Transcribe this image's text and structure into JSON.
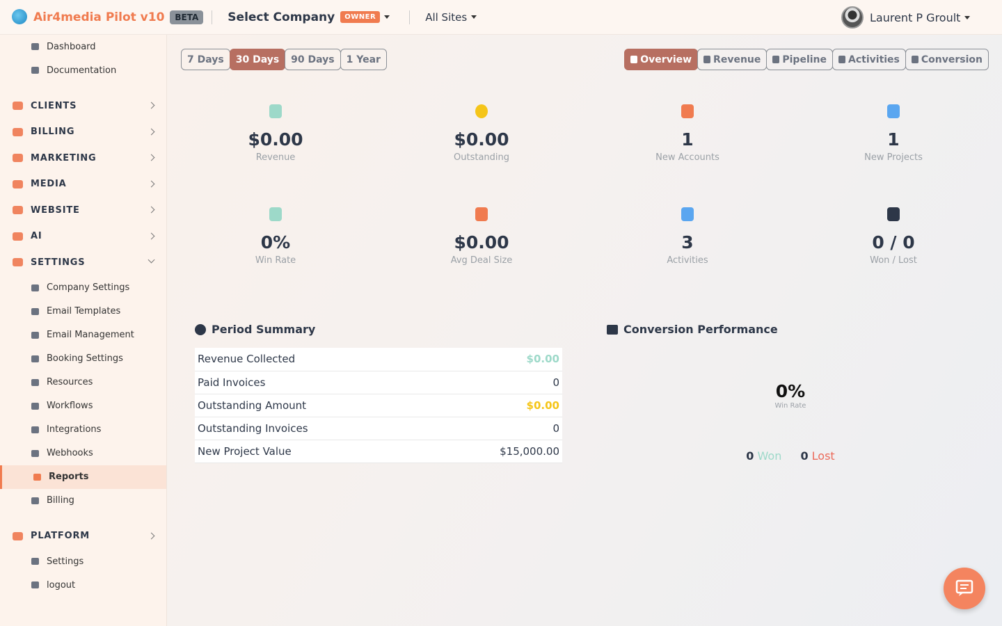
{
  "header": {
    "brand": "Air4media Pilot v10",
    "beta": "BETA",
    "company": "Select Company",
    "role": "OWNER",
    "sites": "All Sites",
    "user": "Laurent P Groult"
  },
  "sidebar": {
    "top": [
      "Dashboard",
      "Documentation"
    ],
    "sections": [
      {
        "label": "CLIENTS"
      },
      {
        "label": "BILLING"
      },
      {
        "label": "MARKETING"
      },
      {
        "label": "MEDIA"
      },
      {
        "label": "WEBSITE"
      },
      {
        "label": "AI"
      },
      {
        "label": "SETTINGS",
        "items": [
          "Company Settings",
          "Email Templates",
          "Email Management",
          "Booking Settings",
          "Resources",
          "Workflows",
          "Integrations",
          "Webhooks",
          "Reports",
          "Billing"
        ]
      },
      {
        "label": "PLATFORM",
        "items": [
          "Settings",
          "logout"
        ]
      }
    ]
  },
  "periods": [
    "7 Days",
    "30 Days",
    "90 Days",
    "1 Year"
  ],
  "tabs": [
    "Overview",
    "Revenue",
    "Pipeline",
    "Activities",
    "Conversion"
  ],
  "stats": [
    {
      "value": "$0.00",
      "label": "Revenue"
    },
    {
      "value": "$0.00",
      "label": "Outstanding"
    },
    {
      "value": "1",
      "label": "New Accounts"
    },
    {
      "value": "1",
      "label": "New Projects"
    },
    {
      "value": "0%",
      "label": "Win Rate"
    },
    {
      "value": "$0.00",
      "label": "Avg Deal Size"
    },
    {
      "value": "3",
      "label": "Activities"
    },
    {
      "value": "0 / 0",
      "label": "Won / Lost"
    }
  ],
  "summary": {
    "title": "Period Summary",
    "rows": [
      [
        "Revenue Collected",
        "$0.00"
      ],
      [
        "Paid Invoices",
        "0"
      ],
      [
        "Outstanding Amount",
        "$0.00"
      ],
      [
        "Outstanding Invoices",
        "0"
      ],
      [
        "New Project Value",
        "$15,000.00"
      ]
    ]
  },
  "conversion": {
    "title": "Conversion Performance",
    "rate": "0%",
    "rate_label": "Win Rate",
    "won": "0",
    "won_label": "Won",
    "lost": "0",
    "lost_label": "Lost"
  }
}
